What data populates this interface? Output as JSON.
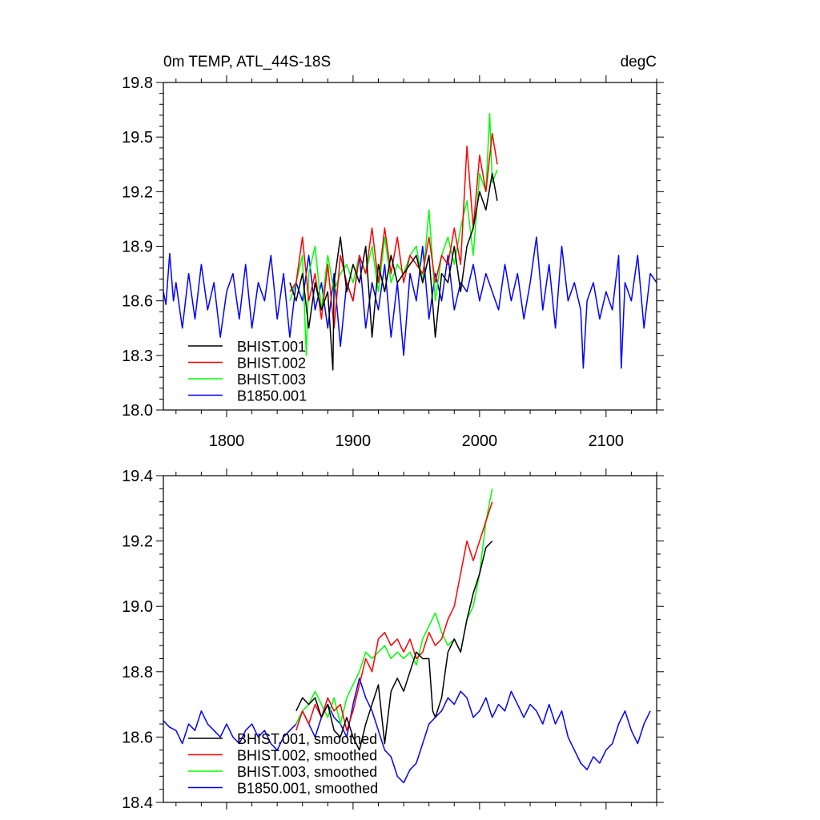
{
  "chart_data": [
    {
      "type": "line",
      "title": "0m TEMP, ATL_44S-18S",
      "units": "degC",
      "xlim": [
        1750,
        2140
      ],
      "ylim": [
        18.0,
        19.8
      ],
      "xticks": [
        "1800",
        "1900",
        "2000",
        "2100"
      ],
      "xtick_values": [
        1800,
        1900,
        2000,
        2100
      ],
      "yticks": [
        "18.0",
        "18.3",
        "18.6",
        "18.9",
        "19.2",
        "19.5",
        "19.8"
      ],
      "ytick_values": [
        18.0,
        18.3,
        18.6,
        18.9,
        19.2,
        19.5,
        19.8
      ],
      "grid": false,
      "legend_position": "bottom-left",
      "series": [
        {
          "name": "BHIST.001",
          "color": "#000000",
          "x": [
            1850,
            1855,
            1860,
            1865,
            1870,
            1875,
            1880,
            1884,
            1885,
            1890,
            1895,
            1900,
            1905,
            1910,
            1915,
            1920,
            1925,
            1930,
            1935,
            1940,
            1945,
            1950,
            1955,
            1960,
            1965,
            1970,
            1975,
            1980,
            1985,
            1990,
            1995,
            2000,
            2005,
            2010,
            2014
          ],
          "y": [
            18.7,
            18.6,
            18.75,
            18.45,
            18.7,
            18.55,
            18.65,
            18.22,
            18.7,
            18.95,
            18.65,
            18.8,
            18.7,
            18.9,
            18.4,
            18.8,
            18.65,
            18.85,
            18.7,
            18.75,
            18.8,
            18.85,
            18.7,
            18.85,
            18.4,
            18.75,
            18.7,
            18.9,
            18.65,
            18.9,
            19.0,
            19.2,
            19.1,
            19.3,
            19.15
          ]
        },
        {
          "name": "BHIST.002",
          "color": "#ff0000",
          "x": [
            1850,
            1855,
            1860,
            1865,
            1870,
            1875,
            1880,
            1885,
            1890,
            1895,
            1900,
            1905,
            1910,
            1915,
            1920,
            1925,
            1930,
            1935,
            1940,
            1945,
            1950,
            1955,
            1960,
            1965,
            1970,
            1975,
            1980,
            1985,
            1990,
            1995,
            2000,
            2005,
            2010,
            2014
          ],
          "y": [
            18.65,
            18.7,
            18.95,
            18.6,
            18.75,
            18.5,
            18.8,
            18.45,
            18.85,
            18.7,
            18.6,
            18.85,
            18.75,
            19.0,
            18.7,
            19.0,
            18.75,
            18.95,
            18.7,
            18.85,
            18.8,
            18.75,
            18.95,
            18.7,
            18.85,
            18.8,
            19.0,
            18.8,
            19.45,
            19.0,
            19.4,
            19.2,
            19.52,
            19.35
          ]
        },
        {
          "name": "BHIST.003",
          "color": "#00ff00",
          "x": [
            1850,
            1855,
            1860,
            1863,
            1865,
            1870,
            1875,
            1880,
            1885,
            1890,
            1895,
            1900,
            1905,
            1910,
            1915,
            1920,
            1925,
            1930,
            1935,
            1940,
            1945,
            1950,
            1955,
            1960,
            1965,
            1970,
            1975,
            1980,
            1985,
            1990,
            1995,
            2000,
            2005,
            2008,
            2010,
            2014
          ],
          "y": [
            18.6,
            18.7,
            18.85,
            18.3,
            18.75,
            18.9,
            18.55,
            18.85,
            18.65,
            18.75,
            18.8,
            18.7,
            18.85,
            18.75,
            18.9,
            18.65,
            18.95,
            18.7,
            18.8,
            18.75,
            18.85,
            18.9,
            18.7,
            19.1,
            18.6,
            18.85,
            18.95,
            18.8,
            19.0,
            19.15,
            18.85,
            19.3,
            19.2,
            19.63,
            19.25,
            19.32
          ]
        },
        {
          "name": "B1850.001",
          "color": "#0000ff",
          "x": [
            1750,
            1752,
            1755,
            1758,
            1760,
            1765,
            1770,
            1775,
            1780,
            1785,
            1790,
            1795,
            1800,
            1805,
            1810,
            1815,
            1820,
            1825,
            1830,
            1835,
            1840,
            1845,
            1850,
            1855,
            1860,
            1865,
            1870,
            1875,
            1880,
            1885,
            1890,
            1895,
            1900,
            1905,
            1910,
            1915,
            1920,
            1925,
            1930,
            1935,
            1940,
            1945,
            1950,
            1955,
            1960,
            1965,
            1970,
            1975,
            1980,
            1985,
            1990,
            1995,
            2000,
            2005,
            2010,
            2015,
            2020,
            2025,
            2030,
            2035,
            2040,
            2045,
            2050,
            2055,
            2060,
            2065,
            2070,
            2075,
            2080,
            2082,
            2085,
            2090,
            2095,
            2100,
            2105,
            2110,
            2112,
            2115,
            2120,
            2125,
            2130,
            2135,
            2140
          ],
          "y": [
            18.65,
            18.58,
            18.86,
            18.6,
            18.7,
            18.45,
            18.75,
            18.5,
            18.8,
            18.55,
            18.7,
            18.4,
            18.65,
            18.75,
            18.5,
            18.8,
            18.45,
            18.7,
            18.6,
            18.85,
            18.5,
            18.75,
            18.4,
            18.7,
            18.6,
            18.85,
            18.55,
            18.7,
            18.45,
            18.75,
            18.35,
            18.7,
            18.6,
            18.85,
            18.45,
            18.7,
            18.55,
            18.8,
            18.4,
            18.7,
            18.3,
            18.75,
            18.6,
            18.9,
            18.5,
            18.75,
            18.6,
            18.85,
            18.55,
            18.7,
            18.65,
            18.8,
            18.6,
            18.75,
            18.65,
            18.55,
            18.8,
            18.6,
            18.75,
            18.5,
            18.7,
            18.95,
            18.55,
            18.8,
            18.45,
            18.9,
            18.6,
            18.7,
            18.55,
            18.23,
            18.6,
            18.7,
            18.5,
            18.65,
            18.55,
            18.85,
            18.23,
            18.7,
            18.6,
            18.85,
            18.45,
            18.75,
            18.7
          ]
        }
      ]
    },
    {
      "type": "line",
      "xlim": [
        1750,
        2140
      ],
      "ylim": [
        18.4,
        19.4
      ],
      "xtick_values": [
        1800,
        1900,
        2000,
        2100
      ],
      "yticks": [
        "18.4",
        "18.6",
        "18.8",
        "19.0",
        "19.2",
        "19.4"
      ],
      "ytick_values": [
        18.4,
        18.6,
        18.8,
        19.0,
        19.2,
        19.4
      ],
      "grid": false,
      "legend_position": "bottom-left",
      "series": [
        {
          "name": "BHIST.001, smoothed",
          "color": "#000000",
          "x": [
            1855,
            1860,
            1865,
            1870,
            1875,
            1880,
            1885,
            1890,
            1895,
            1900,
            1905,
            1910,
            1915,
            1920,
            1925,
            1930,
            1935,
            1940,
            1945,
            1950,
            1955,
            1960,
            1963,
            1965,
            1970,
            1975,
            1980,
            1985,
            1990,
            1995,
            2000,
            2005,
            2010
          ],
          "y": [
            18.68,
            18.72,
            18.7,
            18.72,
            18.66,
            18.7,
            18.62,
            18.6,
            18.66,
            18.6,
            18.56,
            18.64,
            18.7,
            18.76,
            18.58,
            18.74,
            18.78,
            18.74,
            18.8,
            18.86,
            18.84,
            18.84,
            18.68,
            18.66,
            18.72,
            18.86,
            18.9,
            18.86,
            18.96,
            19.04,
            19.1,
            19.18,
            19.2
          ]
        },
        {
          "name": "BHIST.002, smoothed",
          "color": "#ff0000",
          "x": [
            1855,
            1860,
            1865,
            1870,
            1875,
            1880,
            1885,
            1890,
            1895,
            1900,
            1905,
            1910,
            1915,
            1920,
            1925,
            1930,
            1935,
            1940,
            1945,
            1950,
            1955,
            1960,
            1965,
            1970,
            1975,
            1980,
            1985,
            1990,
            1995,
            2000,
            2005,
            2010
          ],
          "y": [
            18.62,
            18.68,
            18.64,
            18.7,
            18.66,
            18.72,
            18.68,
            18.7,
            18.62,
            18.68,
            18.76,
            18.84,
            18.8,
            18.9,
            18.92,
            18.88,
            18.9,
            18.86,
            18.9,
            18.84,
            18.86,
            18.92,
            18.88,
            18.9,
            18.96,
            19.0,
            19.1,
            19.2,
            19.14,
            19.2,
            19.26,
            19.32
          ]
        },
        {
          "name": "BHIST.003, smoothed",
          "color": "#00ff00",
          "x": [
            1855,
            1860,
            1865,
            1870,
            1875,
            1880,
            1885,
            1890,
            1895,
            1900,
            1905,
            1910,
            1915,
            1920,
            1925,
            1930,
            1935,
            1940,
            1945,
            1950,
            1955,
            1960,
            1965,
            1970,
            1975,
            1980,
            1985,
            1990,
            1995,
            2000,
            2005,
            2010
          ],
          "y": [
            18.64,
            18.68,
            18.7,
            18.74,
            18.7,
            18.66,
            18.72,
            18.64,
            18.72,
            18.76,
            18.8,
            18.86,
            18.84,
            18.86,
            18.88,
            18.84,
            18.86,
            18.84,
            18.86,
            18.82,
            18.9,
            18.94,
            18.98,
            18.92,
            18.88,
            18.9,
            18.86,
            18.96,
            19.0,
            19.1,
            19.26,
            19.36
          ]
        },
        {
          "name": "B1850.001, smoothed",
          "color": "#0000ff",
          "x": [
            1750,
            1755,
            1760,
            1765,
            1770,
            1775,
            1780,
            1785,
            1790,
            1795,
            1800,
            1805,
            1810,
            1815,
            1820,
            1825,
            1830,
            1835,
            1840,
            1845,
            1850,
            1855,
            1860,
            1865,
            1870,
            1875,
            1880,
            1885,
            1890,
            1895,
            1900,
            1905,
            1910,
            1915,
            1920,
            1925,
            1930,
            1935,
            1940,
            1945,
            1950,
            1955,
            1960,
            1965,
            1970,
            1975,
            1980,
            1985,
            1990,
            1995,
            2000,
            2005,
            2010,
            2015,
            2020,
            2025,
            2030,
            2035,
            2040,
            2045,
            2050,
            2055,
            2060,
            2065,
            2070,
            2075,
            2080,
            2085,
            2090,
            2095,
            2100,
            2105,
            2110,
            2115,
            2120,
            2125,
            2130,
            2135
          ],
          "y": [
            18.65,
            18.63,
            18.62,
            18.58,
            18.64,
            18.62,
            18.68,
            18.64,
            18.62,
            18.6,
            18.64,
            18.6,
            18.58,
            18.62,
            18.64,
            18.6,
            18.62,
            18.58,
            18.56,
            18.6,
            18.62,
            18.64,
            18.68,
            18.64,
            18.6,
            18.66,
            18.7,
            18.66,
            18.64,
            18.6,
            18.7,
            18.78,
            18.72,
            18.68,
            18.62,
            18.56,
            18.54,
            18.48,
            18.46,
            18.5,
            18.52,
            18.58,
            18.64,
            18.66,
            18.68,
            18.72,
            18.7,
            18.74,
            18.72,
            18.66,
            18.68,
            18.72,
            18.66,
            18.7,
            18.68,
            18.74,
            18.7,
            18.66,
            18.7,
            18.68,
            18.64,
            18.7,
            18.64,
            18.68,
            18.6,
            18.56,
            18.52,
            18.5,
            18.54,
            18.52,
            18.56,
            18.58,
            18.64,
            18.68,
            18.62,
            18.58,
            18.64,
            18.68
          ]
        }
      ]
    }
  ]
}
